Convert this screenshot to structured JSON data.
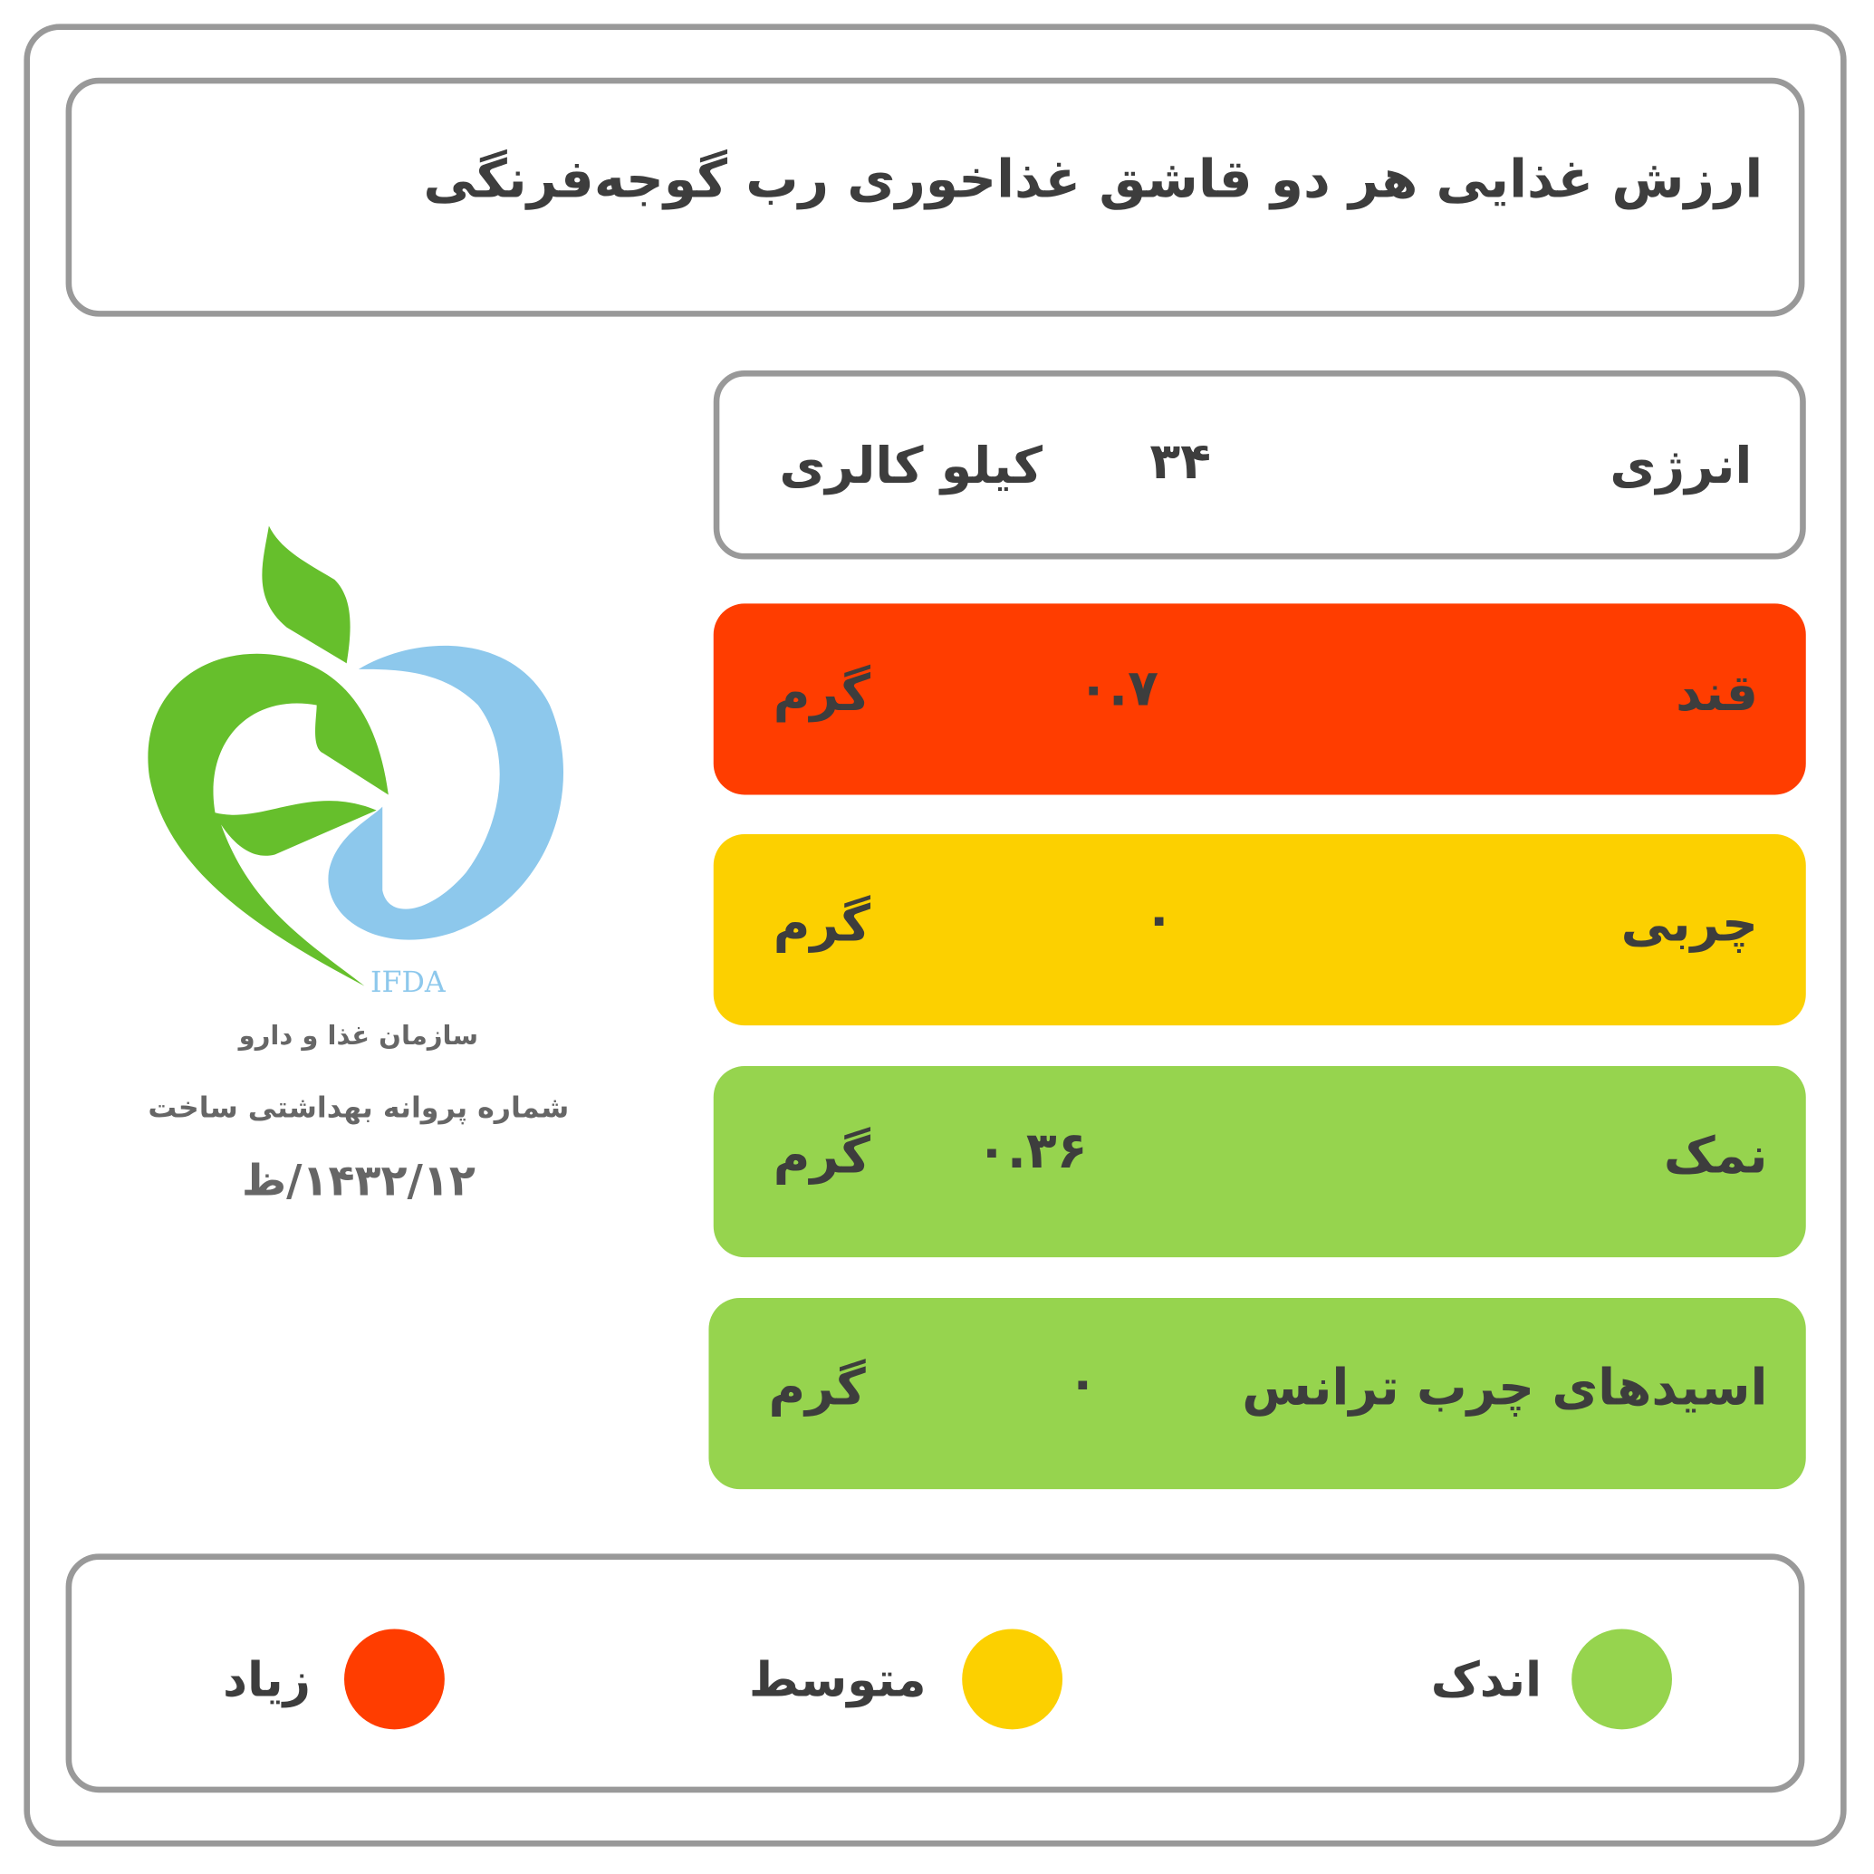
{
  "title": "ارزش غذایی هر دو قاشق غذاخوری رب گوجه‌فرنگی",
  "colors": {
    "high": "#FF3D00",
    "medium": "#FCD000",
    "low": "#96D44E",
    "border": "#999999"
  },
  "nutrients": [
    {
      "label": "انرژی",
      "value": "۳۴",
      "unit": "کیلو کالری",
      "level": "none"
    },
    {
      "label": "قند",
      "value": "۰.۷",
      "unit": "گرم",
      "level": "high"
    },
    {
      "label": "چربی",
      "value": "۰",
      "unit": "گرم",
      "level": "medium"
    },
    {
      "label": "نمک",
      "value": "۰.۳۶",
      "unit": "گرم",
      "level": "low"
    },
    {
      "label": "اسیدهای چرب ترانس",
      "value": "۰",
      "unit": "گرم",
      "level": "low"
    }
  ],
  "logo": {
    "brand": "IFDA",
    "org": "سازمان غذا و دارو",
    "license_label": "شماره پروانه بهداشتی ساخت",
    "license_number": "۱۴۳۲/۱۲/ظ"
  },
  "legend": [
    {
      "label": "اندک",
      "color": "#96D44E"
    },
    {
      "label": "متوسط",
      "color": "#FCD000"
    },
    {
      "label": "زیاد",
      "color": "#FF3D00"
    }
  ]
}
